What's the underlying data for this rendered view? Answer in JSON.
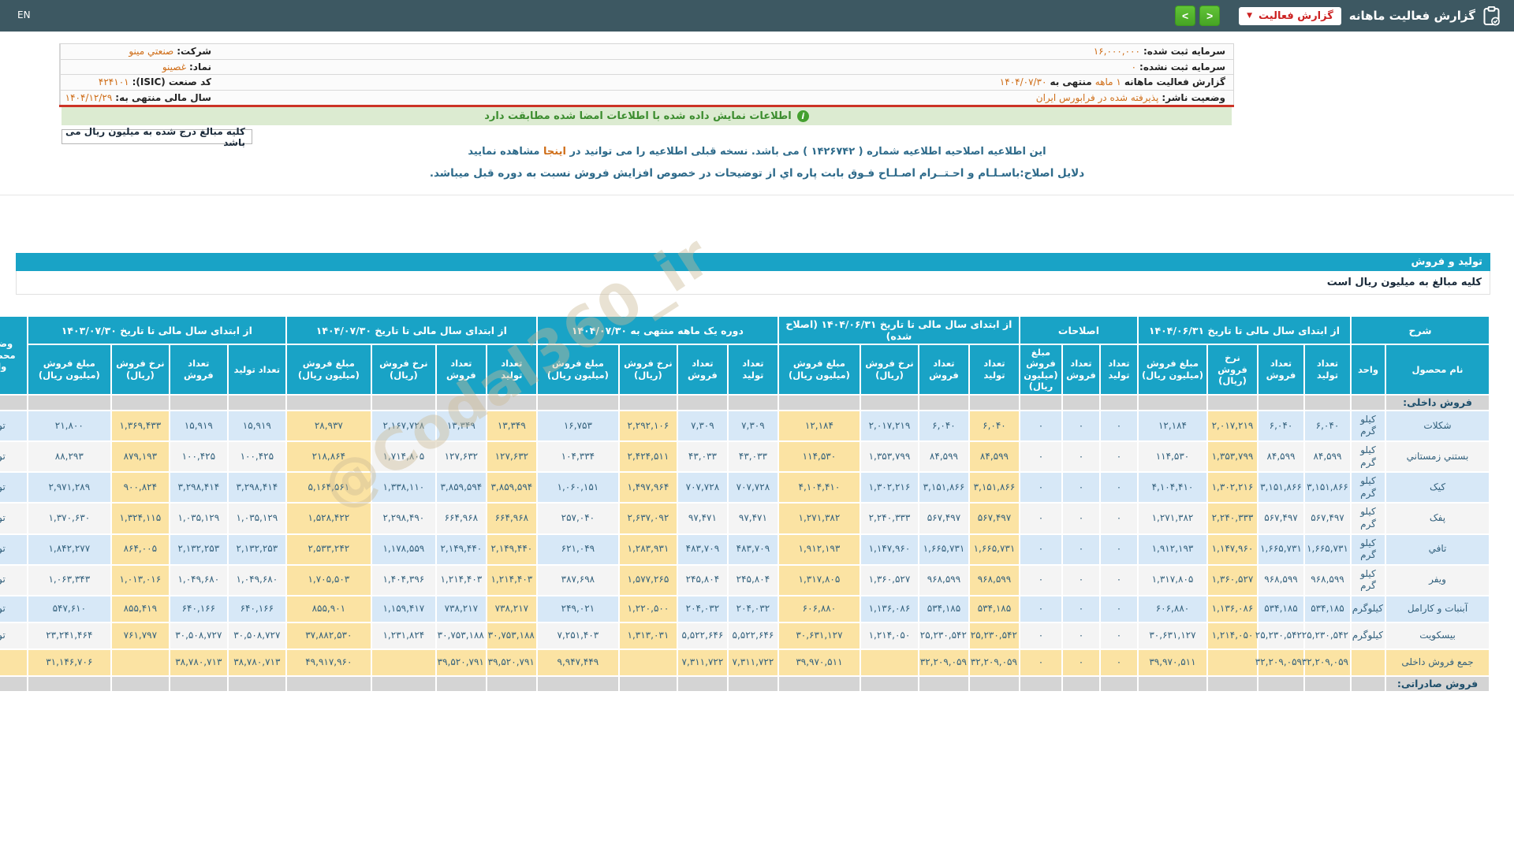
{
  "topbar": {
    "title": "گزارش فعالیت ماهانه",
    "dropdown_label": "گزارش فعالیت",
    "dropdown_caret": "▼",
    "nav_prev": "<",
    "nav_next": ">",
    "lang": "EN"
  },
  "info_table": {
    "rows": [
      {
        "mid": [
          {
            "t": "سرمایه ثبت شده:",
            "c": "label"
          },
          {
            "t": "۱۶,۰۰۰,۰۰۰",
            "c": "orange-num"
          }
        ],
        "right": [
          {
            "t": "شرکت:",
            "c": "label"
          },
          {
            "t": "صنعتي مينو",
            "c": "orange"
          }
        ]
      },
      {
        "mid": [
          {
            "t": "سرمایه ثبت نشده:",
            "c": "label"
          },
          {
            "t": "۰",
            "c": "orange-num"
          }
        ],
        "right": [
          {
            "t": "نماد:",
            "c": "label"
          },
          {
            "t": "غصينو",
            "c": "orange"
          }
        ]
      },
      {
        "mid": [
          {
            "t": "گزارش فعالیت ماهانه",
            "c": "label"
          },
          {
            "t": "۱ ماهه",
            "c": "orange"
          },
          {
            "t": "منتهی به",
            "c": "label"
          },
          {
            "t": "۱۴۰۴/۰۷/۳۰",
            "c": "orange-num"
          }
        ],
        "right": [
          {
            "t": "کد صنعت (ISIC):",
            "c": "label"
          },
          {
            "t": "۴۲۴۱۰۱",
            "c": "orange-num"
          }
        ]
      },
      {
        "mid": [
          {
            "t": "وضعیت ناشر:",
            "c": "label"
          },
          {
            "t": "پذیرفته شده در فرابورس ایران",
            "c": "orange"
          }
        ],
        "right": [
          {
            "t": "سال مالی منتهی به:",
            "c": "label"
          },
          {
            "t": "۱۴۰۴/۱۲/۲۹",
            "c": "orange-num"
          }
        ]
      }
    ]
  },
  "signed_notice": "اطلاعات نمایش داده شده با اطلاعات امضا شده مطابقت دارد",
  "info_icon_glyph": "i",
  "amounts_box": "کلیه مبالغ درج شده به میلیون ریال می باشد",
  "revision_line": {
    "pre": "این اطلاعیه اصلاحیه اطلاعیه شماره ( ۱۴۲۶۷۴۲ ) می باشد. نسخه قبلی اطلاعیه را می توانید در ",
    "link": "اینجا",
    "post": " مشاهده نمایید"
  },
  "revision_reason": "دلایل اصلاح:باسـلـام و احـتــرام اصـلـاح فـوق بابت پاره اي از توضیحات در خصوص افزایش فروش نسبت به دوره قبل میباشد.",
  "watermark": "@Codal360_ir",
  "production": {
    "section_title": "تولید و فروش",
    "units_note": "کلیه مبالغ به میلیون ریال است",
    "header": {
      "desc_group": "شرح",
      "desc_cols": [
        "نام محصول",
        "واحد"
      ],
      "status_col": "وضعیت محصول-واحد",
      "groups": [
        {
          "key": "fy_orig",
          "label": "از ابتدای سال مالی تا تاریخ ۱۴۰۴/۰۶/۳۱",
          "cols": [
            "تعداد تولید",
            "تعداد فروش",
            "نرخ فروش (ریال)",
            "مبلغ فروش (میلیون ریال)"
          ]
        },
        {
          "key": "adjust",
          "label": "اصلاحات",
          "cols": [
            "تعداد تولید",
            "تعداد فروش",
            "مبلغ فروش (میلیون ریال)"
          ]
        },
        {
          "key": "fy_adj",
          "label": "از ابتدای سال مالی تا تاریخ ۱۴۰۴/۰۶/۳۱ (اصلاح شده)",
          "cols": [
            "تعداد تولید",
            "تعداد فروش",
            "نرخ فروش (ریال)",
            "مبلغ فروش (میلیون ریال)"
          ]
        },
        {
          "key": "month",
          "label": "دوره یک ماهه منتهی به ۱۴۰۴/۰۷/۳۰",
          "cols": [
            "تعداد تولید",
            "تعداد فروش",
            "نرخ فروش (ریال)",
            "مبلغ فروش (میلیون ریال)"
          ]
        },
        {
          "key": "fy_cum",
          "label": "از ابتدای سال مالی تا تاریخ ۱۴۰۴/۰۷/۳۰",
          "cols": [
            "تعداد تولید",
            "تعداد فروش",
            "نرخ فروش (ریال)",
            "مبلغ فروش (میلیون ریال)"
          ]
        },
        {
          "key": "prev",
          "label": "از ابتدای سال مالی تا تاریخ ۱۴۰۳/۰۷/۳۰",
          "cols": [
            "تعداد تولید",
            "تعداد فروش",
            "نرخ فروش (ریال)",
            "مبلغ فروش (میلیون ریال)"
          ]
        }
      ]
    },
    "yellow_cols": [
      2,
      7,
      10,
      13,
      15,
      18,
      21
    ],
    "rows": [
      {
        "type": "section",
        "label": "فروش داخلی:"
      },
      {
        "type": "data",
        "name": "شکلات",
        "unit": "کیلو گرم",
        "status": "تولید",
        "fy_orig": [
          "۶,۰۴۰",
          "۶,۰۴۰",
          "۲,۰۱۷,۲۱۹",
          "۱۲,۱۸۴"
        ],
        "adjust": [
          "۰",
          "۰",
          "۰"
        ],
        "fy_adj": [
          "۶,۰۴۰",
          "۶,۰۴۰",
          "۲,۰۱۷,۲۱۹",
          "۱۲,۱۸۴"
        ],
        "month": [
          "۷,۳۰۹",
          "۷,۳۰۹",
          "۲,۲۹۲,۱۰۶",
          "۱۶,۷۵۳"
        ],
        "fy_cum": [
          "۱۳,۳۴۹",
          "۱۳,۳۴۹",
          "۲,۱۶۷,۷۲۸",
          "۲۸,۹۳۷"
        ],
        "prev": [
          "۱۵,۹۱۹",
          "۱۵,۹۱۹",
          "۱,۳۶۹,۴۳۳",
          "۲۱,۸۰۰"
        ]
      },
      {
        "type": "data",
        "name": "بستني زمستاني",
        "unit": "کیلو گرم",
        "status": "تولید",
        "fy_orig": [
          "۸۴,۵۹۹",
          "۸۴,۵۹۹",
          "۱,۳۵۳,۷۹۹",
          "۱۱۴,۵۳۰"
        ],
        "adjust": [
          "۰",
          "۰",
          "۰"
        ],
        "fy_adj": [
          "۸۴,۵۹۹",
          "۸۴,۵۹۹",
          "۱,۳۵۳,۷۹۹",
          "۱۱۴,۵۳۰"
        ],
        "month": [
          "۴۳,۰۳۳",
          "۴۳,۰۳۳",
          "۲,۴۲۴,۵۱۱",
          "۱۰۴,۳۳۴"
        ],
        "fy_cum": [
          "۱۲۷,۶۳۲",
          "۱۲۷,۶۳۲",
          "۱,۷۱۴,۸۰۵",
          "۲۱۸,۸۶۴"
        ],
        "prev": [
          "۱۰۰,۴۲۵",
          "۱۰۰,۴۲۵",
          "۸۷۹,۱۹۳",
          "۸۸,۲۹۳"
        ]
      },
      {
        "type": "data",
        "name": "کیک",
        "unit": "کیلو گرم",
        "status": "تولید",
        "fy_orig": [
          "۳,۱۵۱,۸۶۶",
          "۳,۱۵۱,۸۶۶",
          "۱,۳۰۲,۲۱۶",
          "۴,۱۰۴,۴۱۰"
        ],
        "adjust": [
          "۰",
          "۰",
          "۰"
        ],
        "fy_adj": [
          "۳,۱۵۱,۸۶۶",
          "۳,۱۵۱,۸۶۶",
          "۱,۳۰۲,۲۱۶",
          "۴,۱۰۴,۴۱۰"
        ],
        "month": [
          "۷۰۷,۷۲۸",
          "۷۰۷,۷۲۸",
          "۱,۴۹۷,۹۶۴",
          "۱,۰۶۰,۱۵۱"
        ],
        "fy_cum": [
          "۳,۸۵۹,۵۹۴",
          "۳,۸۵۹,۵۹۴",
          "۱,۳۳۸,۱۱۰",
          "۵,۱۶۴,۵۶۱"
        ],
        "prev": [
          "۳,۲۹۸,۴۱۴",
          "۳,۲۹۸,۴۱۴",
          "۹۰۰,۸۲۴",
          "۲,۹۷۱,۲۸۹"
        ]
      },
      {
        "type": "data",
        "name": "پفک",
        "unit": "کیلو گرم",
        "status": "تولید",
        "fy_orig": [
          "۵۶۷,۴۹۷",
          "۵۶۷,۴۹۷",
          "۲,۲۴۰,۳۳۳",
          "۱,۲۷۱,۳۸۲"
        ],
        "adjust": [
          "۰",
          "۰",
          "۰"
        ],
        "fy_adj": [
          "۵۶۷,۴۹۷",
          "۵۶۷,۴۹۷",
          "۲,۲۴۰,۳۳۳",
          "۱,۲۷۱,۳۸۲"
        ],
        "month": [
          "۹۷,۴۷۱",
          "۹۷,۴۷۱",
          "۲,۶۳۷,۰۹۲",
          "۲۵۷,۰۴۰"
        ],
        "fy_cum": [
          "۶۶۴,۹۶۸",
          "۶۶۴,۹۶۸",
          "۲,۲۹۸,۴۹۰",
          "۱,۵۲۸,۴۲۲"
        ],
        "prev": [
          "۱,۰۳۵,۱۲۹",
          "۱,۰۳۵,۱۲۹",
          "۱,۳۲۴,۱۱۵",
          "۱,۳۷۰,۶۳۰"
        ]
      },
      {
        "type": "data",
        "name": "تافي",
        "unit": "کیلو گرم",
        "status": "تولید",
        "fy_orig": [
          "۱,۶۶۵,۷۳۱",
          "۱,۶۶۵,۷۳۱",
          "۱,۱۴۷,۹۶۰",
          "۱,۹۱۲,۱۹۳"
        ],
        "adjust": [
          "۰",
          "۰",
          "۰"
        ],
        "fy_adj": [
          "۱,۶۶۵,۷۳۱",
          "۱,۶۶۵,۷۳۱",
          "۱,۱۴۷,۹۶۰",
          "۱,۹۱۲,۱۹۳"
        ],
        "month": [
          "۴۸۳,۷۰۹",
          "۴۸۳,۷۰۹",
          "۱,۲۸۳,۹۳۱",
          "۶۲۱,۰۴۹"
        ],
        "fy_cum": [
          "۲,۱۴۹,۴۴۰",
          "۲,۱۴۹,۴۴۰",
          "۱,۱۷۸,۵۵۹",
          "۲,۵۳۳,۲۴۲"
        ],
        "prev": [
          "۲,۱۳۲,۲۵۳",
          "۲,۱۳۲,۲۵۳",
          "۸۶۴,۰۰۵",
          "۱,۸۴۲,۲۷۷"
        ]
      },
      {
        "type": "data",
        "name": "ويفر",
        "unit": "کیلو گرم",
        "status": "تولید",
        "fy_orig": [
          "۹۶۸,۵۹۹",
          "۹۶۸,۵۹۹",
          "۱,۳۶۰,۵۲۷",
          "۱,۳۱۷,۸۰۵"
        ],
        "adjust": [
          "۰",
          "۰",
          "۰"
        ],
        "fy_adj": [
          "۹۶۸,۵۹۹",
          "۹۶۸,۵۹۹",
          "۱,۳۶۰,۵۲۷",
          "۱,۳۱۷,۸۰۵"
        ],
        "month": [
          "۲۴۵,۸۰۴",
          "۲۴۵,۸۰۴",
          "۱,۵۷۷,۲۶۵",
          "۳۸۷,۶۹۸"
        ],
        "fy_cum": [
          "۱,۲۱۴,۴۰۳",
          "۱,۲۱۴,۴۰۳",
          "۱,۴۰۴,۳۹۶",
          "۱,۷۰۵,۵۰۳"
        ],
        "prev": [
          "۱,۰۴۹,۶۸۰",
          "۱,۰۴۹,۶۸۰",
          "۱,۰۱۳,۰۱۶",
          "۱,۰۶۳,۳۴۳"
        ]
      },
      {
        "type": "data",
        "name": "آبنبات و کارامل",
        "unit": "کیلوگرم",
        "status": "تولید",
        "fy_orig": [
          "۵۳۴,۱۸۵",
          "۵۳۴,۱۸۵",
          "۱,۱۳۶,۰۸۶",
          "۶۰۶,۸۸۰"
        ],
        "adjust": [
          "۰",
          "۰",
          "۰"
        ],
        "fy_adj": [
          "۵۳۴,۱۸۵",
          "۵۳۴,۱۸۵",
          "۱,۱۳۶,۰۸۶",
          "۶۰۶,۸۸۰"
        ],
        "month": [
          "۲۰۴,۰۳۲",
          "۲۰۴,۰۳۲",
          "۱,۲۲۰,۵۰۰",
          "۲۴۹,۰۲۱"
        ],
        "fy_cum": [
          "۷۳۸,۲۱۷",
          "۷۳۸,۲۱۷",
          "۱,۱۵۹,۴۱۷",
          "۸۵۵,۹۰۱"
        ],
        "prev": [
          "۶۴۰,۱۶۶",
          "۶۴۰,۱۶۶",
          "۸۵۵,۴۱۹",
          "۵۴۷,۶۱۰"
        ]
      },
      {
        "type": "data",
        "name": "بیسکویت",
        "unit": "کیلوگرم",
        "status": "تولید",
        "fy_orig": [
          "۲۵,۲۳۰,۵۴۲",
          "۲۵,۲۳۰,۵۴۲",
          "۱,۲۱۴,۰۵۰",
          "۳۰,۶۳۱,۱۲۷"
        ],
        "adjust": [
          "۰",
          "۰",
          "۰"
        ],
        "fy_adj": [
          "۲۵,۲۳۰,۵۴۲",
          "۲۵,۲۳۰,۵۴۲",
          "۱,۲۱۴,۰۵۰",
          "۳۰,۶۳۱,۱۲۷"
        ],
        "month": [
          "۵,۵۲۲,۶۴۶",
          "۵,۵۲۲,۶۴۶",
          "۱,۳۱۳,۰۳۱",
          "۷,۲۵۱,۴۰۳"
        ],
        "fy_cum": [
          "۳۰,۷۵۳,۱۸۸",
          "۳۰,۷۵۳,۱۸۸",
          "۱,۲۳۱,۸۲۴",
          "۳۷,۸۸۲,۵۳۰"
        ],
        "prev": [
          "۳۰,۵۰۸,۷۲۷",
          "۳۰,۵۰۸,۷۲۷",
          "۷۶۱,۷۹۷",
          "۲۳,۲۴۱,۴۶۴"
        ]
      },
      {
        "type": "total",
        "name": "جمع فروش داخلی",
        "unit": "",
        "status": "",
        "fy_orig": [
          "۳۲,۲۰۹,۰۵۹",
          "۳۲,۲۰۹,۰۵۹",
          "",
          "۳۹,۹۷۰,۵۱۱"
        ],
        "adjust": [
          "۰",
          "۰",
          "۰"
        ],
        "fy_adj": [
          "۳۲,۲۰۹,۰۵۹",
          "۳۲,۲۰۹,۰۵۹",
          "",
          "۳۹,۹۷۰,۵۱۱"
        ],
        "month": [
          "۷,۳۱۱,۷۲۲",
          "۷,۳۱۱,۷۲۲",
          "",
          "۹,۹۴۷,۴۴۹"
        ],
        "fy_cum": [
          "۳۹,۵۲۰,۷۹۱",
          "۳۹,۵۲۰,۷۹۱",
          "",
          "۴۹,۹۱۷,۹۶۰"
        ],
        "prev": [
          "۳۸,۷۸۰,۷۱۳",
          "۳۸,۷۸۰,۷۱۳",
          "",
          "۳۱,۱۴۶,۷۰۶"
        ]
      },
      {
        "type": "section",
        "label": "فروش صادراتی:"
      }
    ]
  },
  "colors": {
    "topbar": "#3d5862",
    "accent_blue": "#19a3c6",
    "stripe_blue": "#d7e8f7",
    "stripe_gray": "#f4f4f4",
    "yellow": "#fbe3a3",
    "section_gray": "#d4d4d4",
    "orange_link": "#cf6d17",
    "green_bar_bg": "#dcebd1",
    "green_text": "#3c8d2f",
    "red_line": "#cc3326",
    "red_text": "#cc2222",
    "nav_green": "#4eb52b"
  }
}
